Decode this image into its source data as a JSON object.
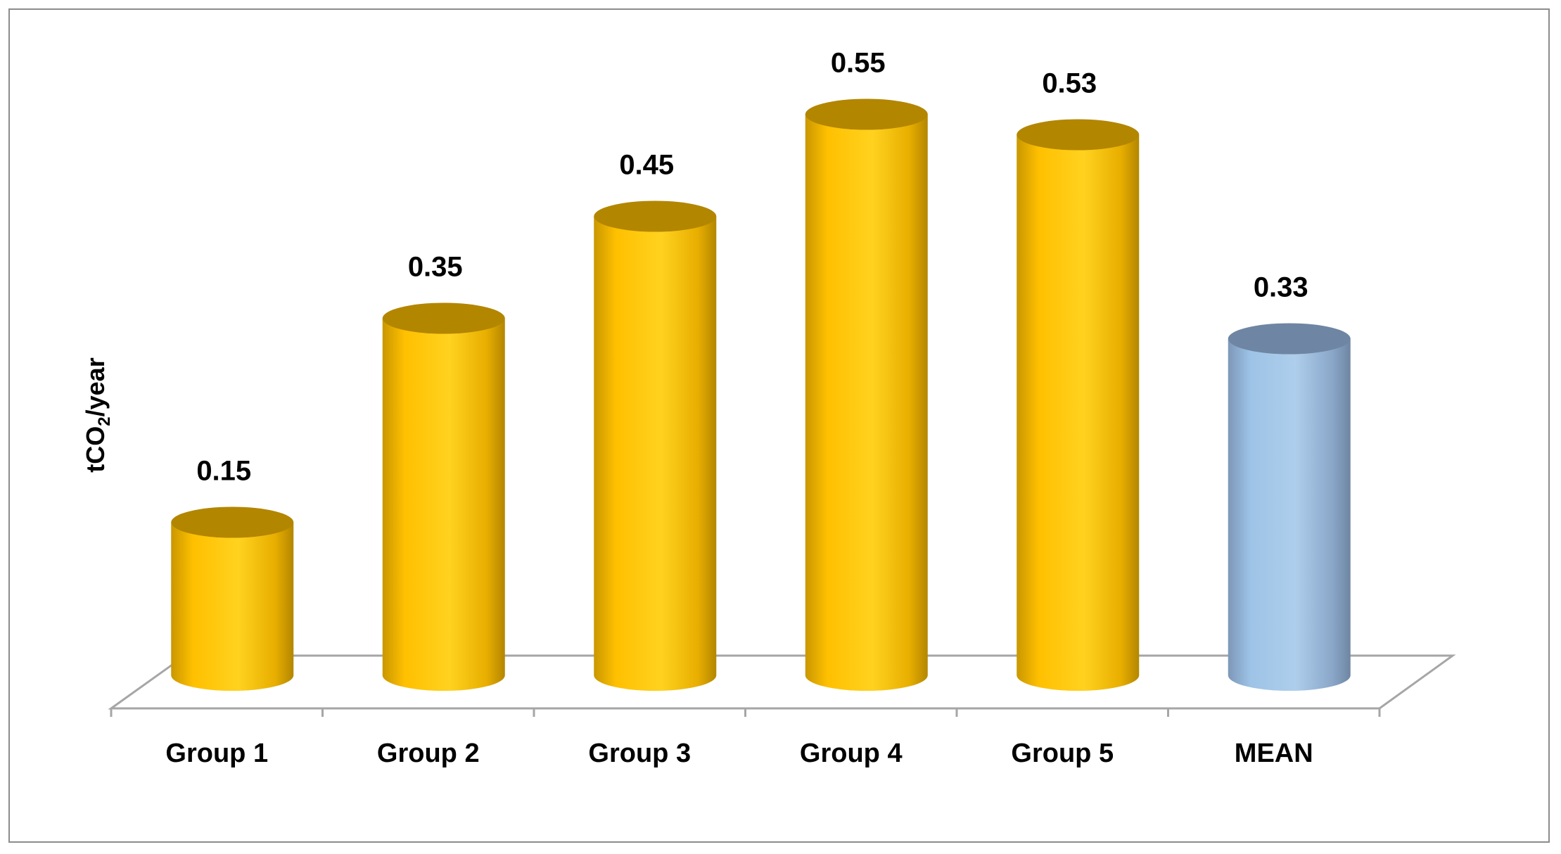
{
  "chart_data": {
    "type": "bar",
    "style": "3d-cylinder",
    "categories": [
      "Group 1",
      "Group 2",
      "Group 3",
      "Group 4",
      "Group 5",
      "MEAN"
    ],
    "values": [
      0.15,
      0.35,
      0.45,
      0.55,
      0.53,
      0.33
    ],
    "value_labels": [
      "0.15",
      "0.35",
      "0.45",
      "0.55",
      "0.53",
      "0.33"
    ],
    "ylabel": "tCO",
    "ylabel_subscript": "2",
    "ylabel_suffix": "/year",
    "ylim": [
      0,
      0.6
    ],
    "grid": false,
    "legend": "none",
    "colors": {
      "bar": "#FFC000",
      "bar_dark": "#B38600",
      "mean": "#9DC3E6",
      "mean_dark": "#6E86A3",
      "floor": "#a6a6a6"
    }
  }
}
